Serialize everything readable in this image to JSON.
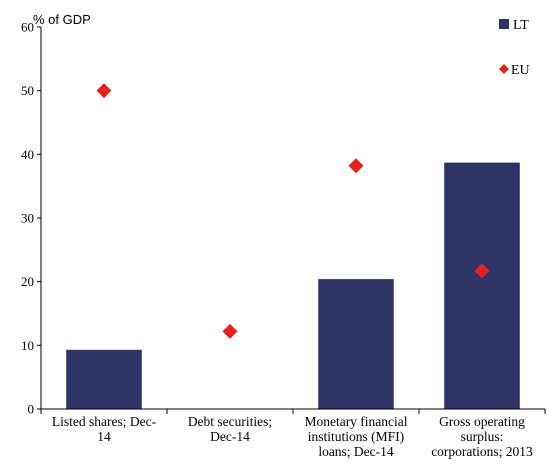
{
  "chart_data": {
    "type": "bar",
    "title": "",
    "ylabel": "% of GDP",
    "xlabel": "",
    "ylim": [
      0,
      60
    ],
    "yticks": [
      0,
      10,
      20,
      30,
      40,
      50,
      60
    ],
    "grid": false,
    "legend_position": "top-right",
    "categories": [
      [
        "Listed shares; Dec-",
        "14"
      ],
      [
        "Debt securities;",
        "Dec-14"
      ],
      [
        "Monetary financial",
        "institutions (MFI)",
        "loans; Dec-14"
      ],
      [
        "Gross operating",
        "surplus:",
        "corporations; 2013"
      ]
    ],
    "series": [
      {
        "name": "LT",
        "kind": "bar",
        "color": "#2e3566",
        "values": [
          9.3,
          null,
          20.4,
          38.7
        ]
      },
      {
        "name": "EU",
        "kind": "diamond-marker",
        "color": "#e3211d",
        "values": [
          50.0,
          12.2,
          38.2,
          21.7
        ]
      }
    ]
  }
}
